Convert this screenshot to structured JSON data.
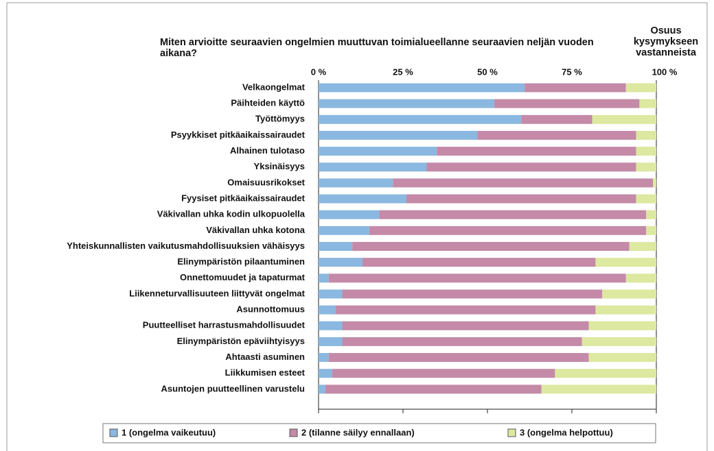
{
  "chart_data": {
    "type": "stacked_barh",
    "title": "Miten arvioitte seuraavien ongelmien muuttuvan toimialueellanne seuraavien neljän vuoden aikana?",
    "side_label": "Osuus kysymykseen vastanneista",
    "categories": [
      "Velkaongelmat",
      "Päihteiden käyttö",
      "Työttömyys",
      "Psyykkiset pitkäaikaissairaudet",
      "Alhainen tulotaso",
      "Yksinäisyys",
      "Omaisuusrikokset",
      "Fyysiset pitkäaikaissairaudet",
      "Väkivallan uhka kodin ulkopuolella",
      "Väkivallan uhka kotona",
      "Yhteiskunnallisten vaikutusmahdollisuuksien vähäisyys",
      "Elinympäristön pilaantuminen",
      "Onnettomuudet ja tapaturmat",
      "Liikenneturvallisuuteen liittyvät ongelmat",
      "Asunnottomuus",
      "Puutteelliset harrastusmahdollisuudet",
      "Elinympäristön epäviihtyisyys",
      "Ahtaasti asuminen",
      "Liikkumisen esteet",
      "Asuntojen puutteellinen varustelu"
    ],
    "series": [
      {
        "name": "1 (ongelma vaikeutuu)",
        "color": "#8ab8e0",
        "values": [
          61,
          52,
          60,
          47,
          35,
          32,
          22,
          26,
          18,
          15,
          10,
          13,
          3,
          7,
          5,
          7,
          7,
          3,
          4,
          2
        ]
      },
      {
        "name": "2 (tilanne säilyy ennallaan)",
        "color": "#c48aa8",
        "values": [
          30,
          43,
          21,
          47,
          59,
          62,
          77,
          68,
          79,
          82,
          82,
          69,
          88,
          77,
          77,
          73,
          71,
          77,
          66,
          64
        ]
      },
      {
        "name": "3 (ongelma helpottuu)",
        "color": "#dde8a0",
        "values": [
          9,
          5,
          19,
          6,
          6,
          6,
          1,
          6,
          3,
          3,
          8,
          18,
          9,
          16,
          18,
          20,
          22,
          20,
          30,
          34
        ]
      }
    ],
    "xlim": [
      0,
      100
    ],
    "xticks": [
      {
        "value": 0,
        "label": "0 %"
      },
      {
        "value": 25,
        "label": "25 %"
      },
      {
        "value": 50,
        "label": "50 %"
      },
      {
        "value": 75,
        "label": "75 %"
      },
      {
        "value": 100,
        "label": "100 %"
      }
    ]
  }
}
